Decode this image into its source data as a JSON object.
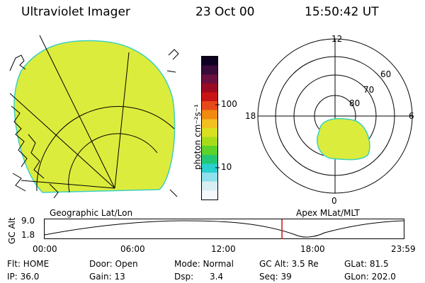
{
  "header": {
    "title": "Ultraviolet Imager",
    "date": "23 Oct 00",
    "time": "15:50:42 UT"
  },
  "colorbar": {
    "unit": "photon cm⁻²s⁻¹",
    "ticks": [
      "100",
      "10"
    ],
    "colors": [
      "#0d0020",
      "#3a0a3a",
      "#6a1040",
      "#9a0a20",
      "#c81414",
      "#e64a1a",
      "#f08a10",
      "#f2c020",
      "#d8e020",
      "#a8dc1a",
      "#5cd22a",
      "#22c878",
      "#2ad0d0",
      "#8ee0ea",
      "#d8eef4",
      "#f4f8fa"
    ]
  },
  "left_panel": {
    "label": "Geographic Lat/Lon",
    "fill_color": "#dcec3c",
    "edge_color": "#3cd0c0"
  },
  "right_panel": {
    "label": "Apex MLat/MLT",
    "lat_labels": [
      "80",
      "70",
      "60"
    ],
    "mlt_labels": [
      "12",
      "6",
      "0",
      "18"
    ],
    "fill_color": "#dcec3c",
    "edge_color": "#3cd0c0"
  },
  "timeline": {
    "axis_label": "GC Alt",
    "y_ticks": [
      "9.0",
      "1.8"
    ],
    "x_ticks": [
      "00:00",
      "06:00",
      "12:00",
      "18:00",
      "23:59"
    ],
    "marker_time_hours": 15.85,
    "marker_color": "#d01010"
  },
  "info": {
    "row1": [
      "Flt: HOME",
      "Door: Open",
      "Mode: Normal",
      "GC Alt: 3.5 Re",
      "GLat:  81.5"
    ],
    "row2": [
      "IP: 36.0",
      "Gain: 13",
      "Dsp:      3.4",
      "Seq: 39",
      "GLon: 202.0"
    ]
  }
}
